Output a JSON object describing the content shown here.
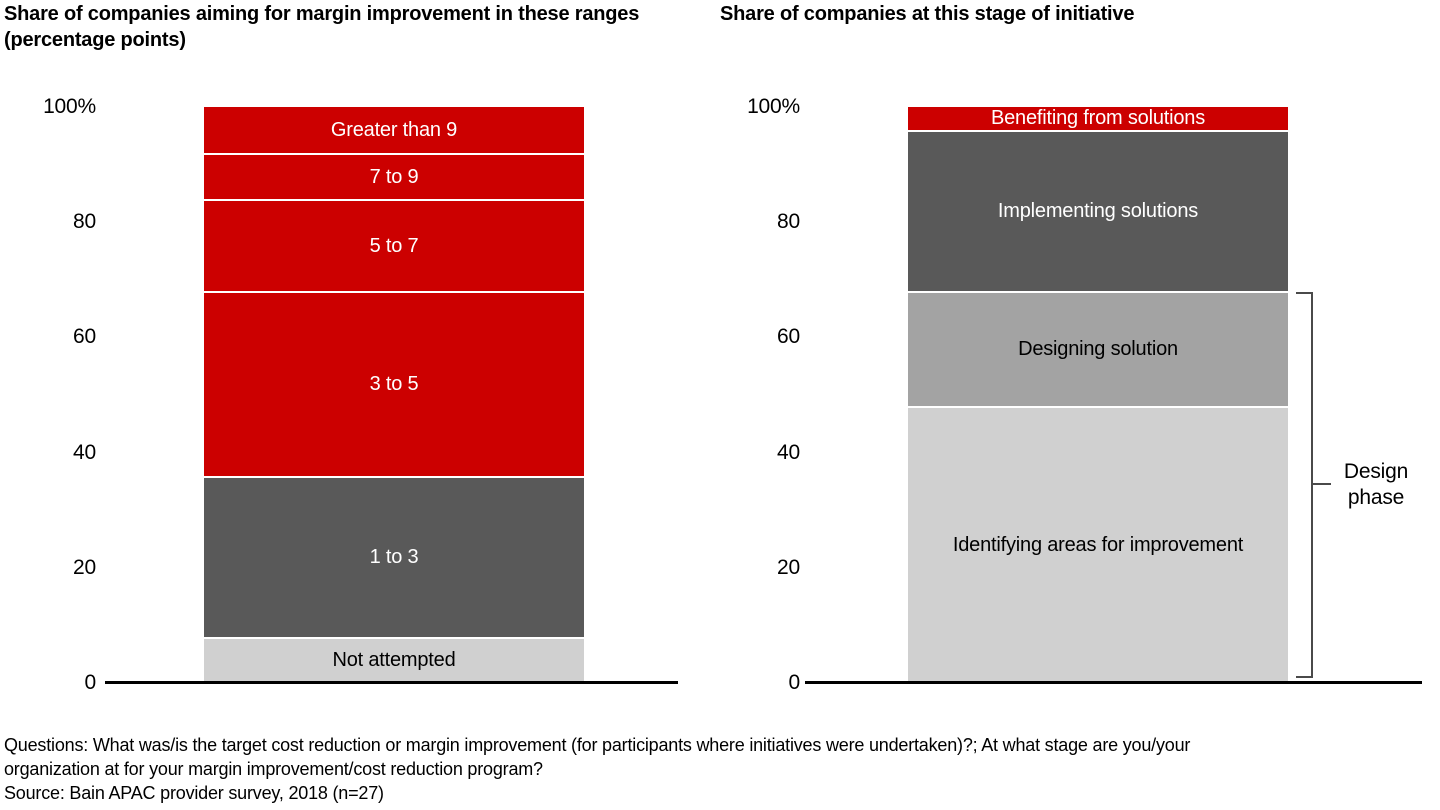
{
  "page": {
    "footer": {
      "questions_line1": "Questions: What was/is the target cost reduction or margin improvement (for participants where initiatives were undertaken)?; At what stage are you/your",
      "questions_line2": "organization at for your margin improvement/cost reduction program?",
      "source": "Source: Bain APAC provider survey, 2018 (n=27)"
    }
  },
  "colors": {
    "bain_red": "#cc0000",
    "dark_gray": "#595959",
    "mid_gray": "#a3a3a3",
    "light_gray": "#d0d0d0",
    "axis_black": "#000000",
    "bracket_gray": "#4a4a4a"
  },
  "chart_data": [
    {
      "type": "bar",
      "stacked": true,
      "title": "Share of companies aiming for margin improvement in these ranges (percentage points)",
      "xlabel": "",
      "ylabel": "",
      "ylim": [
        0,
        100
      ],
      "grid": false,
      "yticks": [
        {
          "label": "100%",
          "value": 100
        },
        {
          "label": "80",
          "value": 80
        },
        {
          "label": "60",
          "value": 60
        },
        {
          "label": "40",
          "value": 40
        },
        {
          "label": "20",
          "value": 20
        },
        {
          "label": "0",
          "value": 0
        }
      ],
      "segments_top_to_bottom": [
        {
          "label": "Greater than 9",
          "value": 8,
          "color": "#cc0000",
          "text_color": "#ffffff"
        },
        {
          "label": "7 to 9",
          "value": 8,
          "color": "#cc0000",
          "text_color": "#ffffff"
        },
        {
          "label": "5 to 7",
          "value": 16,
          "color": "#cc0000",
          "text_color": "#ffffff"
        },
        {
          "label": "3 to 5",
          "value": 32,
          "color": "#cc0000",
          "text_color": "#ffffff"
        },
        {
          "label": "1 to 3",
          "value": 28,
          "color": "#595959",
          "text_color": "#ffffff"
        },
        {
          "label": "Not attempted",
          "value": 8,
          "color": "#d0d0d0",
          "text_color": "#000000"
        }
      ]
    },
    {
      "type": "bar",
      "stacked": true,
      "title": "Share of companies at this stage of initiative",
      "xlabel": "",
      "ylabel": "",
      "ylim": [
        0,
        100
      ],
      "grid": false,
      "yticks": [
        {
          "label": "100%",
          "value": 100
        },
        {
          "label": "80",
          "value": 80
        },
        {
          "label": "60",
          "value": 60
        },
        {
          "label": "40",
          "value": 40
        },
        {
          "label": "20",
          "value": 20
        },
        {
          "label": "0",
          "value": 0
        }
      ],
      "segments_top_to_bottom": [
        {
          "label": "Benefiting from solutions",
          "value": 4,
          "color": "#cc0000",
          "text_color": "#ffffff"
        },
        {
          "label": "Implementing solutions",
          "value": 28,
          "color": "#595959",
          "text_color": "#ffffff"
        },
        {
          "label": "Designing solution",
          "value": 20,
          "color": "#a3a3a3",
          "text_color": "#000000"
        },
        {
          "label": "Identifying areas for improvement",
          "value": 48,
          "color": "#d0d0d0",
          "text_color": "#000000"
        }
      ],
      "bracket": {
        "label": "Design phase",
        "covers": [
          "Designing solution",
          "Identifying areas for improvement"
        ],
        "span_pct": [
          0,
          68
        ]
      }
    }
  ]
}
